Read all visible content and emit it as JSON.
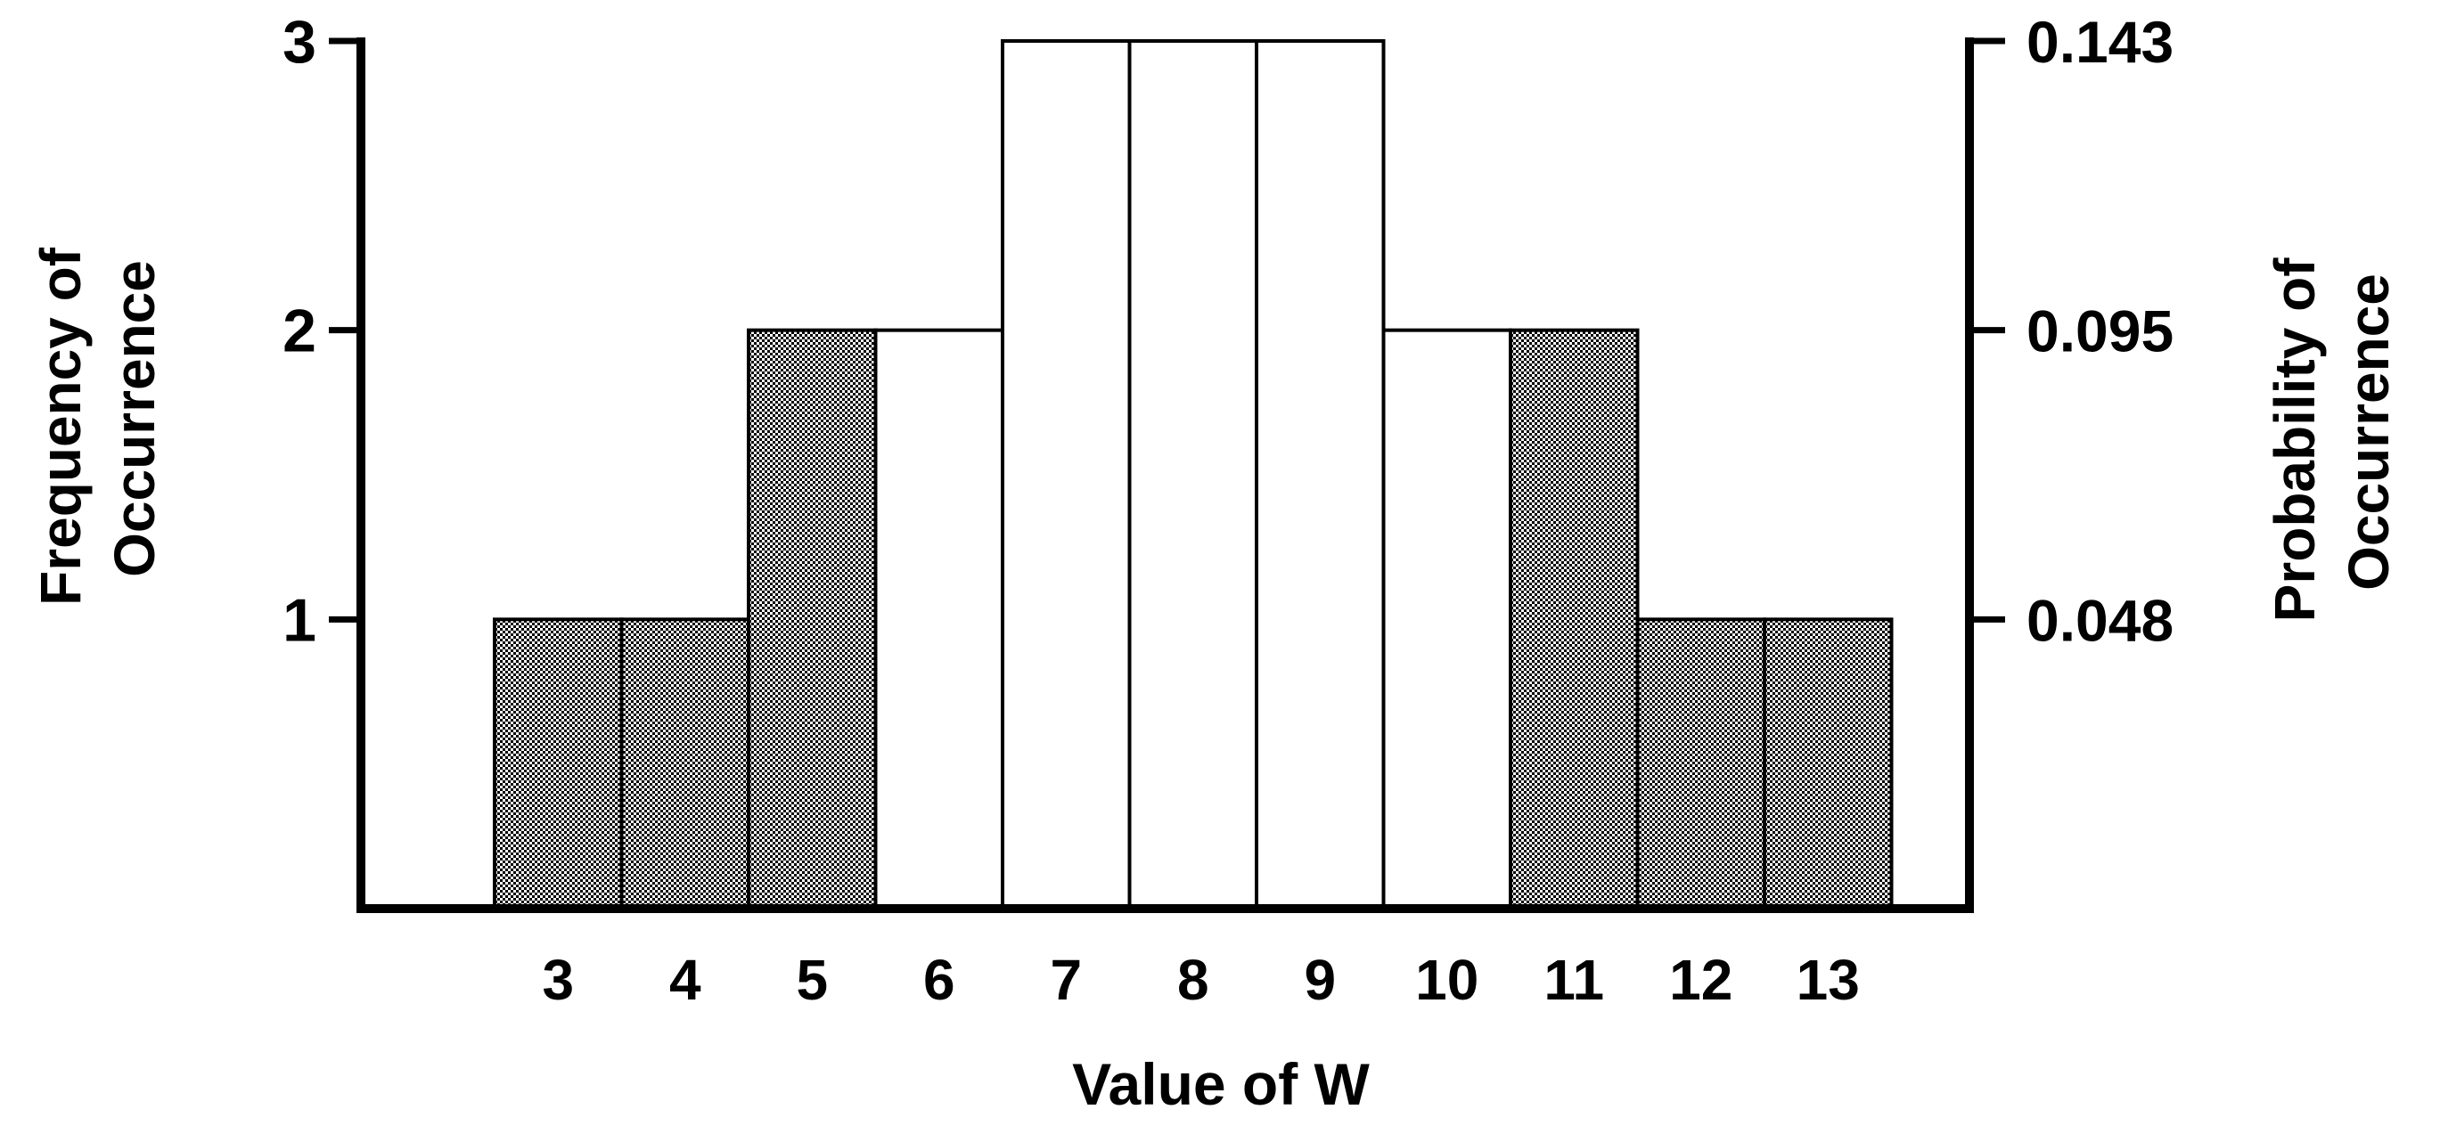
{
  "chart_data": {
    "type": "bar",
    "categories": [
      "3",
      "4",
      "5",
      "6",
      "7",
      "8",
      "9",
      "10",
      "11",
      "12",
      "13"
    ],
    "values": [
      1,
      1,
      2,
      2,
      3,
      3,
      3,
      2,
      2,
      1,
      1
    ],
    "shaded": [
      true,
      true,
      true,
      false,
      false,
      false,
      false,
      false,
      true,
      true,
      true
    ],
    "xlabel": "Value of W",
    "ylabel_left": [
      "Frequency of",
      "Occurrence"
    ],
    "ylabel_right": [
      "Probability of",
      "Occurrence"
    ],
    "ylim": [
      0,
      3
    ],
    "left_ticks": [
      {
        "value": 1,
        "label": "1"
      },
      {
        "value": 2,
        "label": "2"
      },
      {
        "value": 3,
        "label": "3"
      }
    ],
    "right_ticks": [
      {
        "value": 1,
        "label": "0.048"
      },
      {
        "value": 2,
        "label": "0.095"
      },
      {
        "value": 3,
        "label": "0.143"
      }
    ],
    "grid": false,
    "legend": "none"
  },
  "colors": {
    "shaded_fill": "#8a8a8a",
    "open_fill": "#ffffff",
    "stroke": "#000000"
  }
}
